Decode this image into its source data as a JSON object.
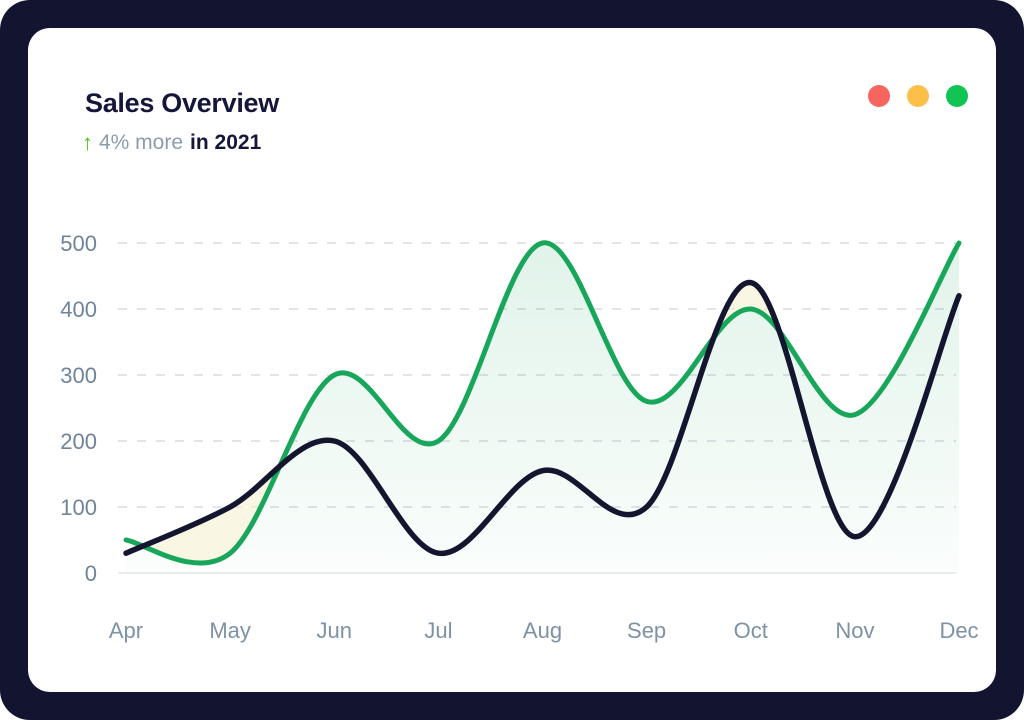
{
  "card": {
    "title": "Sales Overview",
    "subtitle": {
      "arrow": "↑",
      "highlight": "4% more",
      "rest": "in 2021"
    },
    "window_dots": [
      {
        "name": "red",
        "color": "#f8655f"
      },
      {
        "name": "yellow",
        "color": "#fbbf4a"
      },
      {
        "name": "green",
        "color": "#12c552"
      }
    ]
  },
  "chart_data": {
    "type": "line",
    "title": "Sales Overview",
    "subtitle": "4% more in 2021",
    "categories": [
      "Apr",
      "May",
      "Jun",
      "Jul",
      "Aug",
      "Sep",
      "Oct",
      "Nov",
      "Dec"
    ],
    "series": [
      {
        "name": "sales-green",
        "color": "#18a65a",
        "area_fill": "vertical green gradient",
        "values": [
          50,
          30,
          300,
          200,
          500,
          260,
          400,
          240,
          500
        ]
      },
      {
        "name": "sales-navy",
        "color": "#14162f",
        "area_fill": "pale cream where above green series",
        "values": [
          30,
          100,
          200,
          30,
          155,
          100,
          440,
          55,
          420
        ]
      }
    ],
    "xlabel": "",
    "ylabel": "",
    "ylim": [
      0,
      500
    ],
    "yticks": [
      0,
      100,
      200,
      300,
      400,
      500
    ],
    "grid": "dashed horizontal gridlines, solid zero baseline",
    "legend": "none",
    "colors": {
      "gridline": "#e1e4e8",
      "baseline": "#ebeded",
      "tick_label": "#6f8498",
      "month_label": "#7e92a6",
      "cream_band": "#f5efcf"
    }
  }
}
